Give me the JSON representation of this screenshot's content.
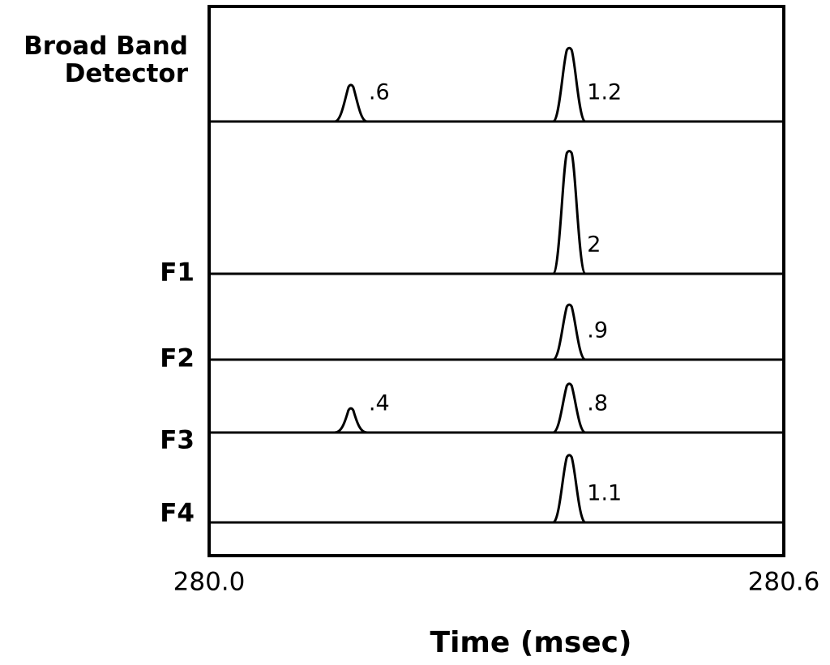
{
  "chart_data": {
    "type": "traces",
    "xlabel": "Time (msec)",
    "xlim": [
      280.0,
      280.6
    ],
    "xticks": [
      {
        "value": 280.0,
        "label": "280.0"
      },
      {
        "value": 280.6,
        "label": "280.6"
      }
    ],
    "series": [
      {
        "name": "Broad Band Detector",
        "x": [
          280.148,
          280.376
        ],
        "values": [
          0.6,
          1.2
        ],
        "value_labels": [
          ".6",
          "1.2"
        ]
      },
      {
        "name": "F1",
        "x": [
          280.376
        ],
        "values": [
          2
        ]
      },
      {
        "name": "F2",
        "x": [
          280.376
        ],
        "values": [
          0.9
        ],
        "value_labels": [
          ".9"
        ]
      },
      {
        "name": "F3",
        "x": [
          280.148,
          280.376
        ],
        "values": [
          0.4,
          0.8
        ],
        "value_labels": [
          ".4",
          ".8"
        ]
      },
      {
        "name": "F4",
        "x": [
          280.376
        ],
        "values": [
          1.1
        ]
      }
    ]
  }
}
